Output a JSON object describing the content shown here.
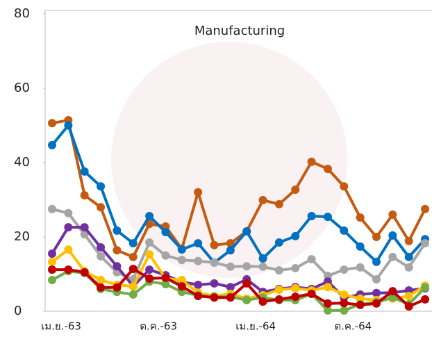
{
  "chart_data": {
    "type": "line",
    "title": "Manufacturing",
    "categories": [
      "เม.ย.-63",
      null,
      null,
      null,
      null,
      null,
      "ต.ค.-63",
      null,
      null,
      null,
      null,
      null,
      "เม.ย.-64",
      null,
      null,
      null,
      null,
      null,
      "ต.ค.-64",
      null,
      null,
      null,
      null,
      null
    ],
    "ylim": [
      0,
      80
    ],
    "yticks": [
      0,
      20,
      40,
      60,
      80
    ],
    "series": [
      {
        "color": "#c55a11",
        "values": [
          50.6,
          51.4,
          31.2,
          28,
          16.4,
          14.6,
          23.5,
          22.8,
          16.8,
          32,
          17.8,
          18.3,
          21.5,
          29.9,
          28.8,
          32.7,
          40.2,
          38.3,
          33.6,
          25.2,
          20,
          26,
          18.9,
          27.5
        ]
      },
      {
        "color": "#0070c0",
        "values": [
          44.7,
          50,
          37.6,
          33.6,
          21.7,
          18.3,
          25.6,
          21.3,
          16.6,
          18.3,
          13.1,
          16.4,
          21.5,
          14.2,
          18.5,
          20.2,
          25.6,
          25.4,
          21.7,
          17.4,
          13.3,
          20.4,
          14.6,
          19.4
        ]
      },
      {
        "color": "#a5a5a5",
        "values": [
          27.5,
          26.4,
          20.7,
          14.8,
          10.5,
          8.6,
          18.5,
          15,
          13.8,
          13.5,
          13.1,
          12,
          12.1,
          12,
          11,
          11.6,
          14,
          9.5,
          11.2,
          11.8,
          8.6,
          14.6,
          11.8,
          18.3
        ]
      },
      {
        "color": "#7030a0",
        "values": [
          15.5,
          22.6,
          22.6,
          17.2,
          12.1,
          6.7,
          11.2,
          9.7,
          7.9,
          7.1,
          7.5,
          6.5,
          8.6,
          5.2,
          6,
          6.5,
          6,
          8,
          3.7,
          4.5,
          4.9,
          5,
          5.6,
          6.2
        ]
      },
      {
        "color": "#ffc000",
        "values": [
          13.3,
          16.6,
          10.8,
          8.4,
          7.1,
          6.7,
          15.3,
          8.8,
          8.4,
          5,
          4.1,
          4.7,
          3.4,
          4.3,
          5.8,
          6.2,
          5.6,
          6.5,
          4.5,
          3.4,
          3,
          3.4,
          4.1,
          6.9
        ]
      },
      {
        "color": "#70ad47",
        "values": [
          8.4,
          10.8,
          10.3,
          6,
          5.2,
          4.5,
          8,
          7.3,
          5.2,
          4.3,
          3.9,
          3.9,
          3,
          3.7,
          3,
          3,
          4.7,
          0.2,
          0.2,
          1.9,
          2.4,
          3.7,
          1.9,
          6.4
        ]
      },
      {
        "color": "#c00000",
        "values": [
          11.2,
          11.2,
          10.5,
          6.4,
          6.4,
          11.4,
          8.8,
          9,
          6.7,
          4.1,
          3.7,
          3.7,
          7.5,
          2.6,
          3.2,
          3.9,
          4.7,
          2.1,
          2.2,
          1.7,
          2.1,
          5.4,
          1.3,
          3.2
        ]
      }
    ]
  }
}
